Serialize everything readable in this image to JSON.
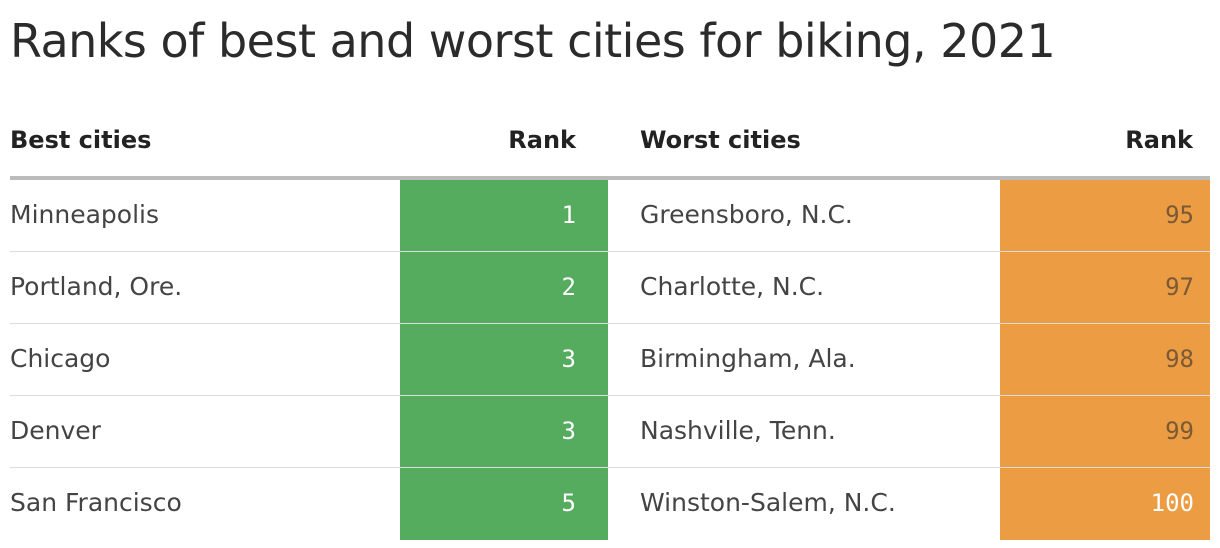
{
  "title": "Ranks of best and worst cities for biking, 2021",
  "colors": {
    "best_fill": "#55ab5e",
    "worst_fill": "#ec9c42",
    "worst_text": "#7a5a35",
    "worst_top_text": "#ffffff"
  },
  "chart_data": {
    "type": "table",
    "title": "Ranks of best and worst cities for biking, 2021",
    "columns": [
      "Best cities",
      "Rank",
      "Worst cities",
      "Rank"
    ],
    "rows": [
      {
        "best_city": "Minneapolis",
        "best_rank": "1",
        "worst_city": "Greensboro, N.C.",
        "worst_rank": "95"
      },
      {
        "best_city": "Portland, Ore.",
        "best_rank": "2",
        "worst_city": "Charlotte, N.C.",
        "worst_rank": "97"
      },
      {
        "best_city": "Chicago",
        "best_rank": "3",
        "worst_city": "Birmingham, Ala.",
        "worst_rank": "98"
      },
      {
        "best_city": "Denver",
        "best_rank": "3",
        "worst_city": "Nashville, Tenn.",
        "worst_rank": "99"
      },
      {
        "best_city": "San Francisco",
        "best_rank": "5",
        "worst_city": "Winston-Salem, N.C.",
        "worst_rank": "100"
      }
    ]
  }
}
